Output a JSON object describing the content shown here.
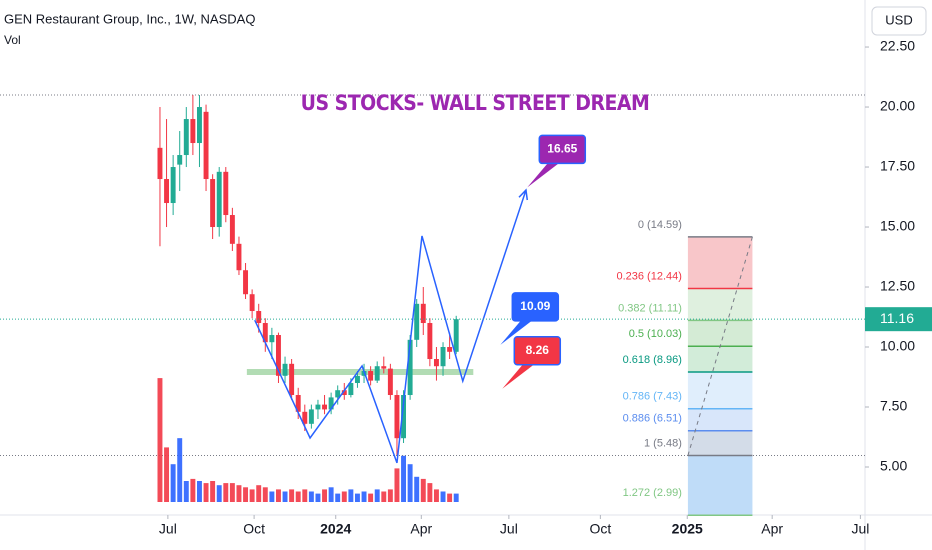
{
  "chart_data": {
    "type": "candlestick",
    "title": "GEN Restaurant Group, Inc., 1W, NASDAQ",
    "volume_label": "Vol",
    "currency": "USD",
    "annotation_title": "US STOCKS- WALL STREET DREAM",
    "up_color": "#22ab94",
    "down_color": "#f23645",
    "volume_up_color": "#2962ff",
    "volume_down_color": "#f23645",
    "x": [
      0,
      1,
      2,
      3,
      4,
      5,
      6,
      7,
      8,
      9,
      10,
      11,
      12,
      13,
      14,
      15,
      16,
      17,
      18,
      19,
      20,
      21,
      22,
      23,
      24,
      25,
      26,
      27,
      28,
      29,
      30,
      31,
      32,
      33,
      34,
      35,
      36,
      37,
      38,
      39,
      40,
      41,
      42,
      43,
      44,
      45
    ],
    "open": [
      18.3,
      17.0,
      16.0,
      17.6,
      18.0,
      19.5,
      18.5,
      19.8,
      17.0,
      15.0,
      17.3,
      15.5,
      14.3,
      13.2,
      12.2,
      11.5,
      11.0,
      10.2,
      10.5,
      8.8,
      9.3,
      8.0,
      7.3,
      6.8,
      7.4,
      7.6,
      7.4,
      7.9,
      8.2,
      8.0,
      8.5,
      8.8,
      9.0,
      8.6,
      9.2,
      9.1,
      8.0,
      6.2,
      8.0,
      10.3,
      11.8,
      11.0,
      9.5,
      9.2,
      10.0,
      9.8
    ],
    "high": [
      20.0,
      19.5,
      18.0,
      19.0,
      20.0,
      20.5,
      20.5,
      20.1,
      17.2,
      17.5,
      17.5,
      15.8,
      14.6,
      13.5,
      12.4,
      11.8,
      11.2,
      10.8,
      10.6,
      9.6,
      9.5,
      8.3,
      7.6,
      7.6,
      7.8,
      8.0,
      8.1,
      8.4,
      8.5,
      8.7,
      9.0,
      9.3,
      9.2,
      9.4,
      9.6,
      9.3,
      8.2,
      8.2,
      10.5,
      12.0,
      12.5,
      11.2,
      10.0,
      10.2,
      10.6,
      11.3
    ],
    "low": [
      14.2,
      15.0,
      15.5,
      16.5,
      17.5,
      18.0,
      17.5,
      16.5,
      14.5,
      14.6,
      15.2,
      14.0,
      13.0,
      12.0,
      11.2,
      10.6,
      9.8,
      9.5,
      8.5,
      8.5,
      7.8,
      7.0,
      6.5,
      6.6,
      7.0,
      7.2,
      7.2,
      7.6,
      7.8,
      7.9,
      8.3,
      8.5,
      8.4,
      8.5,
      8.9,
      7.8,
      5.5,
      6.0,
      7.8,
      10.0,
      10.5,
      9.2,
      8.6,
      8.8,
      9.5,
      9.7
    ],
    "close": [
      17.0,
      16.0,
      17.5,
      18.0,
      19.5,
      18.5,
      20.0,
      17.0,
      15.0,
      17.3,
      15.5,
      14.3,
      13.2,
      12.2,
      11.5,
      11.0,
      10.2,
      10.5,
      8.8,
      9.3,
      8.0,
      7.3,
      6.8,
      7.4,
      7.6,
      7.4,
      7.9,
      8.2,
      8.0,
      8.5,
      8.8,
      9.0,
      8.6,
      9.2,
      9.1,
      8.0,
      6.2,
      8.0,
      10.3,
      11.8,
      11.0,
      9.5,
      9.2,
      10.0,
      9.8,
      11.16
    ],
    "volume": [
      2.95,
      1.3,
      0.9,
      1.52,
      0.5,
      0.55,
      0.5,
      0.45,
      0.5,
      0.4,
      0.45,
      0.45,
      0.4,
      0.35,
      0.3,
      0.4,
      0.35,
      0.25,
      0.3,
      0.25,
      0.3,
      0.25,
      0.3,
      0.25,
      0.2,
      0.3,
      0.35,
      0.2,
      0.25,
      0.3,
      0.2,
      0.25,
      0.2,
      0.3,
      0.25,
      0.3,
      0.8,
      1.1,
      0.9,
      0.6,
      0.55,
      0.45,
      0.3,
      0.25,
      0.2,
      0.2
    ],
    "xlim": [
      -24.3,
      107.1
    ],
    "ylim": [
      3.0,
      24.46
    ],
    "y2lim": [
      0,
      3.5
    ],
    "xticks": [
      {
        "value": 1.2,
        "label": "Jul"
      },
      {
        "value": 14.3,
        "label": "Oct"
      },
      {
        "value": 26.7,
        "label": "2024"
      },
      {
        "value": 39.7,
        "label": "Apr"
      },
      {
        "value": 53.0,
        "label": "Jul"
      },
      {
        "value": 66.9,
        "label": "Oct"
      },
      {
        "value": 80.1,
        "label": "2025"
      },
      {
        "value": 93.0,
        "label": "Apr"
      },
      {
        "value": 106.4,
        "label": "Jul"
      }
    ],
    "yticks": [
      {
        "value": 5,
        "label": "5.00"
      },
      {
        "value": 7.5,
        "label": "7.50"
      },
      {
        "value": 10,
        "label": "10.00"
      },
      {
        "value": 12.5,
        "label": "12.50"
      },
      {
        "value": 15,
        "label": "15.00"
      },
      {
        "value": 17.5,
        "label": "17.50"
      },
      {
        "value": 20,
        "label": "20.00"
      },
      {
        "value": 22.5,
        "label": "22.50"
      }
    ],
    "hlines": [
      20.5,
      5.48
    ],
    "pattern": {
      "color": "#2962ff",
      "x": [
        14.4,
        22.8,
        30.7,
        36.0,
        39.8,
        46.0,
        55.6
      ],
      "y": [
        11.12,
        6.21,
        9.21,
        5.17,
        14.63,
        8.58,
        16.54
      ]
    },
    "neckline": {
      "color": "#a5d6a7",
      "x": [
        13.2,
        47.6
      ],
      "y": 8.96
    },
    "callouts": [
      {
        "text": "16.65",
        "value": 16.65,
        "x": 55.8,
        "color": "#9c27b0"
      },
      {
        "text": "10.09",
        "value": 10.09,
        "x": 51.7,
        "color": "#2962ff"
      },
      {
        "text": "8.26",
        "value": 8.26,
        "x": 52.0,
        "color": "#f23645"
      }
    ],
    "fib": {
      "x": [
        80.2,
        90.0
      ],
      "levels": [
        {
          "label": "0 (14.59)",
          "value": 14.59,
          "color": "#787b86",
          "fill": "#f8c6c9"
        },
        {
          "label": "0.236 (12.44)",
          "value": 12.44,
          "color": "#f23645",
          "fill": "#dff0df"
        },
        {
          "label": "0.382 (11.11)",
          "value": 11.11,
          "color": "#81c784",
          "fill": "#d4ebd5"
        },
        {
          "label": "0.5 (10.03)",
          "value": 10.03,
          "color": "#4caf50",
          "fill": "#d2ecd9"
        },
        {
          "label": "0.618 (8.96)",
          "value": 8.96,
          "color": "#089981",
          "fill": "#e0eefc"
        },
        {
          "label": "0.786 (7.43)",
          "value": 7.43,
          "color": "#64b5f6",
          "fill": "#d8e6fa"
        },
        {
          "label": "0.886 (6.51)",
          "value": 6.51,
          "color": "#5b8def",
          "fill": "#d3dce8"
        },
        {
          "label": "1 (5.48)",
          "value": 5.48,
          "color": "#787b86",
          "fill": "#bfdcf8"
        },
        {
          "label": "1.272 (2.99)",
          "value": 2.99,
          "color": "#81c784",
          "fill": "none"
        }
      ]
    }
  }
}
